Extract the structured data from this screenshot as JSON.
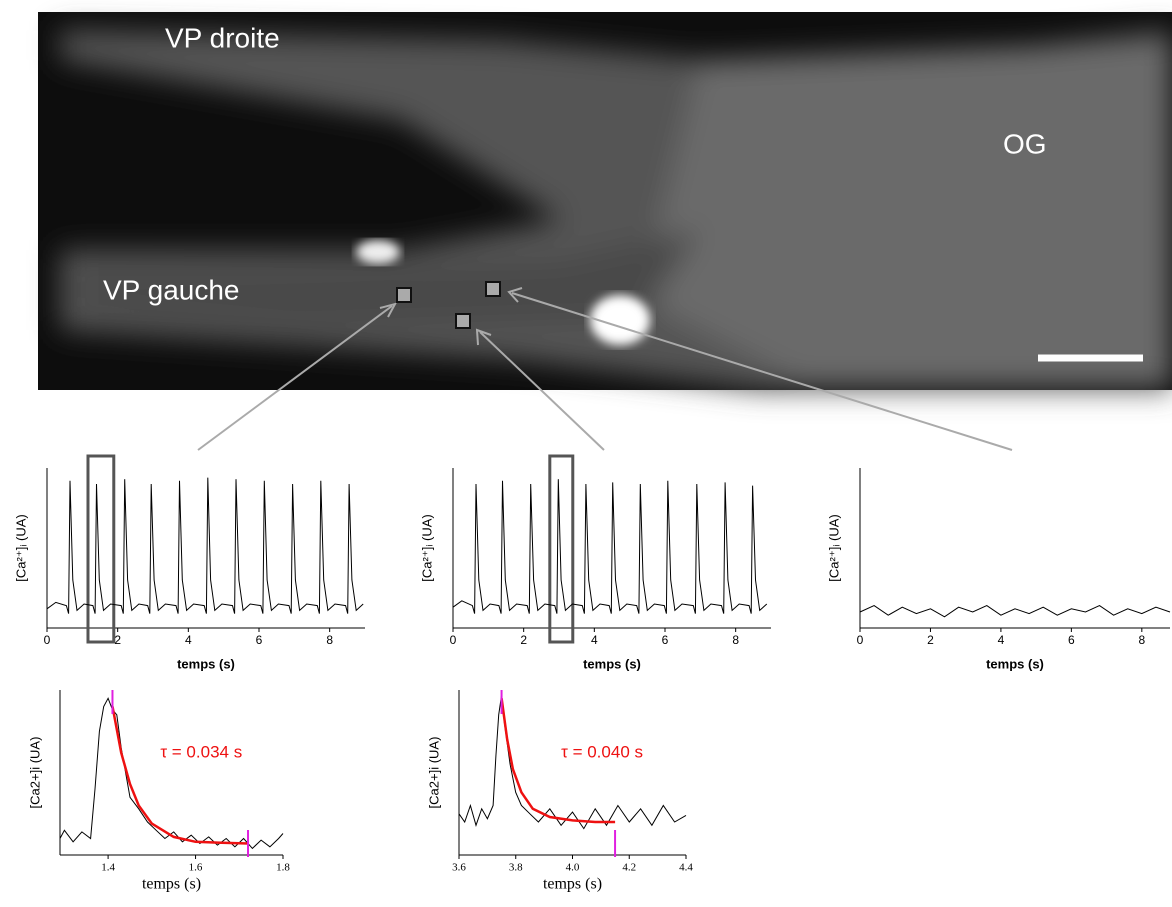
{
  "image": {
    "labels": [
      "VP droite",
      "VP gauche",
      "OG"
    ]
  },
  "chart_data": [
    {
      "type": "line",
      "x_label": "temps (s)",
      "y_label": "[Ca²⁺]ᵢ (UA)",
      "xlim": [
        0,
        9
      ],
      "ylim": [
        0,
        1
      ],
      "xticks": [
        0,
        2,
        4,
        6,
        8
      ],
      "highlight_x": [
        1.16,
        1.89
      ],
      "series": [
        {
          "color": "#000000",
          "x": [
            0,
            0.25,
            0.55,
            0.61,
            0.65,
            0.73,
            0.85,
            1.05,
            1.3,
            1.36,
            1.4,
            1.48,
            1.6,
            1.8,
            2.1,
            2.16,
            2.2,
            2.28,
            2.4,
            2.6,
            2.85,
            2.91,
            2.95,
            3.03,
            3.15,
            3.35,
            3.65,
            3.71,
            3.75,
            3.83,
            3.95,
            4.15,
            4.45,
            4.51,
            4.55,
            4.63,
            4.75,
            4.95,
            5.25,
            5.31,
            5.35,
            5.43,
            5.55,
            5.75,
            6.05,
            6.11,
            6.15,
            6.23,
            6.35,
            6.55,
            6.85,
            6.91,
            6.95,
            7.03,
            7.15,
            7.35,
            7.65,
            7.71,
            7.75,
            7.83,
            7.95,
            8.15,
            8.45,
            8.51,
            8.55,
            8.63,
            8.75,
            8.95
          ],
          "values": [
            0.12,
            0.16,
            0.14,
            0.09,
            0.92,
            0.3,
            0.11,
            0.15,
            0.14,
            0.09,
            0.9,
            0.3,
            0.11,
            0.15,
            0.14,
            0.09,
            0.93,
            0.3,
            0.11,
            0.15,
            0.14,
            0.09,
            0.9,
            0.3,
            0.11,
            0.15,
            0.14,
            0.09,
            0.92,
            0.3,
            0.11,
            0.15,
            0.14,
            0.09,
            0.94,
            0.3,
            0.11,
            0.15,
            0.14,
            0.09,
            0.93,
            0.3,
            0.11,
            0.15,
            0.14,
            0.09,
            0.92,
            0.3,
            0.11,
            0.15,
            0.14,
            0.09,
            0.9,
            0.3,
            0.11,
            0.15,
            0.14,
            0.09,
            0.92,
            0.3,
            0.11,
            0.15,
            0.14,
            0.09,
            0.9,
            0.3,
            0.11,
            0.15
          ]
        }
      ]
    },
    {
      "type": "line",
      "x_label": "temps (s)",
      "y_label": "[Ca²⁺]ᵢ (UA)",
      "xlim": [
        0,
        9
      ],
      "ylim": [
        0,
        1
      ],
      "xticks": [
        0,
        2,
        4,
        6,
        8
      ],
      "highlight_x": [
        2.74,
        3.39
      ],
      "series": [
        {
          "color": "#000000",
          "x": [
            0,
            0.25,
            0.55,
            0.61,
            0.65,
            0.73,
            0.85,
            1.05,
            1.3,
            1.36,
            1.4,
            1.48,
            1.6,
            1.8,
            2.1,
            2.16,
            2.2,
            2.28,
            2.4,
            2.6,
            2.88,
            2.94,
            2.98,
            3.06,
            3.18,
            3.38,
            3.66,
            3.72,
            3.76,
            3.84,
            3.96,
            4.16,
            4.42,
            4.48,
            4.52,
            4.6,
            4.72,
            4.92,
            5.2,
            5.26,
            5.3,
            5.38,
            5.5,
            5.7,
            5.98,
            6.04,
            6.08,
            6.16,
            6.28,
            6.48,
            6.8,
            6.86,
            6.9,
            6.98,
            7.1,
            7.3,
            7.6,
            7.66,
            7.7,
            7.78,
            7.9,
            8.1,
            8.38,
            8.44,
            8.48,
            8.56,
            8.68,
            8.88
          ],
          "values": [
            0.13,
            0.17,
            0.14,
            0.09,
            0.9,
            0.3,
            0.11,
            0.15,
            0.14,
            0.09,
            0.92,
            0.3,
            0.11,
            0.15,
            0.14,
            0.09,
            0.9,
            0.3,
            0.11,
            0.15,
            0.14,
            0.09,
            0.93,
            0.3,
            0.11,
            0.15,
            0.14,
            0.09,
            0.9,
            0.3,
            0.11,
            0.15,
            0.14,
            0.09,
            0.91,
            0.3,
            0.11,
            0.15,
            0.14,
            0.09,
            0.9,
            0.3,
            0.11,
            0.15,
            0.14,
            0.09,
            0.92,
            0.3,
            0.11,
            0.15,
            0.14,
            0.09,
            0.9,
            0.3,
            0.11,
            0.15,
            0.14,
            0.09,
            0.91,
            0.3,
            0.11,
            0.15,
            0.14,
            0.09,
            0.89,
            0.3,
            0.11,
            0.15
          ]
        }
      ]
    },
    {
      "type": "line",
      "x_label": "temps (s)",
      "y_label": "[Ca²⁺]ᵢ (UA)",
      "xlim": [
        0,
        8.8
      ],
      "ylim": [
        0,
        1
      ],
      "xticks": [
        0,
        2,
        4,
        6,
        8
      ],
      "series": [
        {
          "color": "#000000",
          "x": [
            0,
            0.4,
            0.8,
            1.2,
            1.6,
            2,
            2.4,
            2.8,
            3.2,
            3.6,
            4,
            4.4,
            4.8,
            5.2,
            5.6,
            6,
            6.4,
            6.8,
            7.2,
            7.6,
            8,
            8.4,
            8.8
          ],
          "values": [
            0.1,
            0.14,
            0.08,
            0.13,
            0.09,
            0.12,
            0.07,
            0.13,
            0.1,
            0.14,
            0.08,
            0.12,
            0.09,
            0.13,
            0.08,
            0.12,
            0.1,
            0.14,
            0.08,
            0.12,
            0.09,
            0.13,
            0.1
          ]
        }
      ]
    },
    {
      "type": "line",
      "x_label": "temps (s)",
      "y_label": "[Ca2+]i (UA)",
      "xlim": [
        1.29,
        1.8
      ],
      "ylim": [
        0,
        1
      ],
      "xticks": [
        1.4,
        1.6,
        1.8
      ],
      "annotation": "τ = 0.034 s",
      "annotation_color": "#ee1111",
      "fit_range": [
        1.41,
        1.72
      ],
      "series": [
        {
          "color": "#000000",
          "x": [
            1.29,
            1.3,
            1.32,
            1.34,
            1.36,
            1.37,
            1.38,
            1.39,
            1.4,
            1.41,
            1.42,
            1.43,
            1.44,
            1.45,
            1.47,
            1.49,
            1.51,
            1.53,
            1.55,
            1.57,
            1.59,
            1.61,
            1.63,
            1.65,
            1.67,
            1.69,
            1.71,
            1.73,
            1.75,
            1.77,
            1.79,
            1.8
          ],
          "values": [
            0.1,
            0.15,
            0.08,
            0.14,
            0.1,
            0.4,
            0.75,
            0.9,
            0.95,
            0.88,
            0.85,
            0.65,
            0.5,
            0.35,
            0.28,
            0.2,
            0.15,
            0.1,
            0.14,
            0.08,
            0.12,
            0.07,
            0.11,
            0.06,
            0.1,
            0.05,
            0.1,
            0.04,
            0.09,
            0.05,
            0.1,
            0.13
          ]
        },
        {
          "color": "#ee1111",
          "x": [
            1.41,
            1.43,
            1.45,
            1.47,
            1.5,
            1.55,
            1.6,
            1.65,
            1.72
          ],
          "values": [
            0.9,
            0.62,
            0.43,
            0.3,
            0.19,
            0.11,
            0.08,
            0.075,
            0.07
          ]
        }
      ]
    },
    {
      "type": "line",
      "x_label": "temps (s)",
      "y_label": "[Ca2+]i (UA)",
      "xlim": [
        3.6,
        4.4
      ],
      "ylim": [
        0,
        1
      ],
      "xticks": [
        3.6,
        3.8,
        {
          "value": 4,
          "label": "4.0"
        },
        4.2,
        4.4
      ],
      "annotation": "τ = 0.040 s",
      "annotation_color": "#ee1111",
      "fit_range": [
        3.75,
        4.15
      ],
      "series": [
        {
          "color": "#000000",
          "x": [
            3.6,
            3.62,
            3.64,
            3.66,
            3.68,
            3.7,
            3.72,
            3.73,
            3.74,
            3.75,
            3.76,
            3.78,
            3.8,
            3.82,
            3.85,
            3.88,
            3.92,
            3.96,
            4,
            4.04,
            4.08,
            4.12,
            4.16,
            4.2,
            4.24,
            4.28,
            4.32,
            4.36,
            4.4
          ],
          "values": [
            0.25,
            0.2,
            0.3,
            0.18,
            0.28,
            0.22,
            0.3,
            0.6,
            0.85,
            0.97,
            0.8,
            0.55,
            0.38,
            0.3,
            0.25,
            0.2,
            0.28,
            0.18,
            0.26,
            0.16,
            0.28,
            0.18,
            0.3,
            0.2,
            0.28,
            0.18,
            0.3,
            0.2,
            0.24
          ]
        },
        {
          "color": "#ee1111",
          "x": [
            3.75,
            3.77,
            3.79,
            3.82,
            3.86,
            3.92,
            4,
            4.08,
            4.15
          ],
          "values": [
            0.95,
            0.7,
            0.52,
            0.38,
            0.28,
            0.23,
            0.21,
            0.2,
            0.2
          ]
        }
      ]
    }
  ]
}
